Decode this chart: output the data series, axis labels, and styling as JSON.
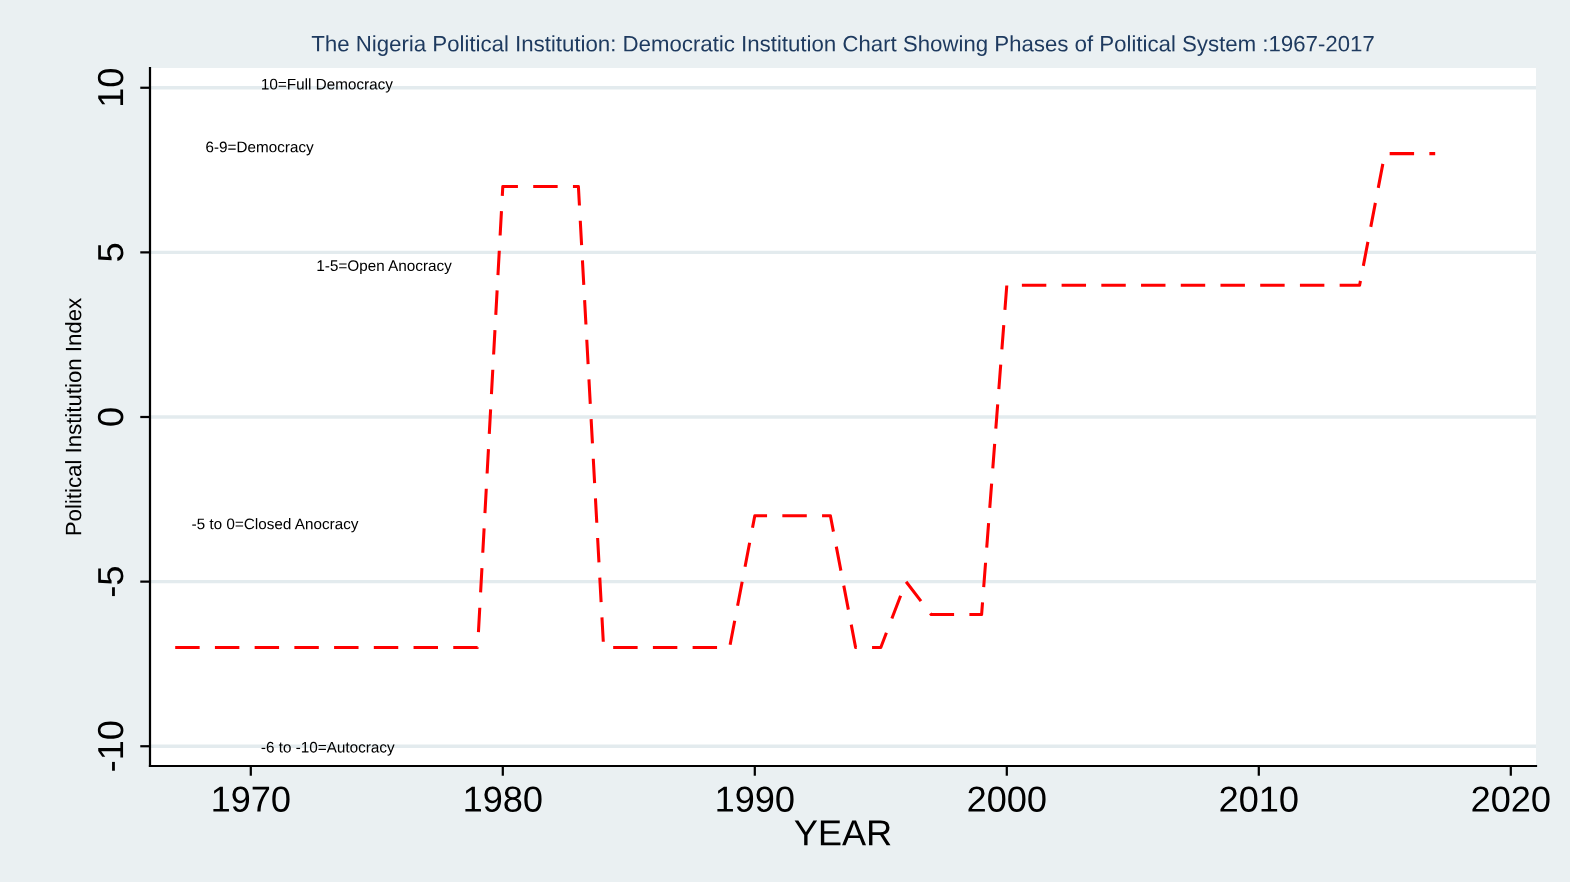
{
  "chart_data": {
    "type": "line",
    "title": "The Nigeria Political Institution: Democratic Institution Chart Showing Phases of Political System :1967-2017",
    "xlabel": "YEAR",
    "ylabel": "Political Institution Index",
    "x": [
      1967,
      1968,
      1969,
      1970,
      1971,
      1972,
      1973,
      1974,
      1975,
      1976,
      1977,
      1978,
      1979,
      1980,
      1981,
      1982,
      1983,
      1984,
      1985,
      1986,
      1987,
      1988,
      1989,
      1990,
      1991,
      1992,
      1993,
      1994,
      1995,
      1996,
      1997,
      1998,
      1999,
      2000,
      2001,
      2002,
      2003,
      2004,
      2005,
      2006,
      2007,
      2008,
      2009,
      2010,
      2011,
      2012,
      2013,
      2014,
      2015,
      2016,
      2017
    ],
    "series": [
      {
        "color": "#ff0000",
        "values": [
          -7,
          -7,
          -7,
          -7,
          -7,
          -7,
          -7,
          -7,
          -7,
          -7,
          -7,
          -7,
          -7,
          7,
          7,
          7,
          7,
          -7,
          -7,
          -7,
          -7,
          -7,
          -7,
          -3,
          -3,
          -3,
          -3,
          -7,
          -7,
          -5,
          -6,
          -6,
          -6,
          4,
          4,
          4,
          4,
          4,
          4,
          4,
          4,
          4,
          4,
          4,
          4,
          4,
          4,
          4,
          8,
          8,
          8
        ]
      }
    ],
    "xlim": [
      1966,
      2021
    ],
    "ylim": [
      -10.6,
      10.6
    ],
    "xticks": [
      1970,
      1980,
      1990,
      2000,
      2010,
      2020
    ],
    "yticks": [
      -10,
      -5,
      0,
      5,
      10
    ],
    "grid": "y",
    "line_style": "dashed",
    "marker": "none",
    "annotations": [
      "10=Full Democracy",
      "6-9=Democracy",
      "1-5=Open Anocracy",
      "-5 to 0=Closed Anocracy",
      "-6 to -10=Autocracy"
    ]
  }
}
